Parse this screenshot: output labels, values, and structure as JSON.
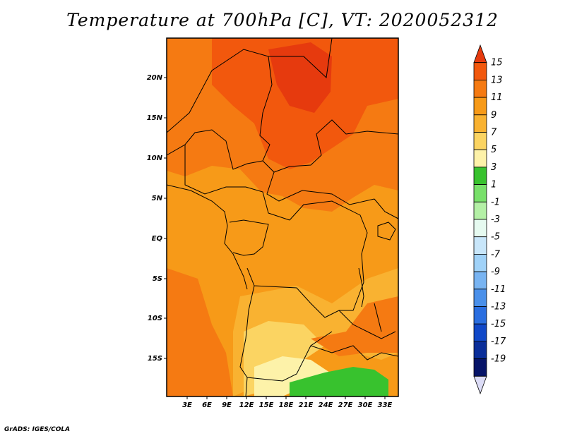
{
  "title": "Temperature at 700hPa [C], VT: 2020052312",
  "credit": "GrADS: IGES/COLA",
  "map": {
    "lat_labels": [
      "20N",
      "15N",
      "10N",
      "5N",
      "EQ",
      "5S",
      "10S",
      "15S"
    ],
    "lon_labels": [
      "3E",
      "6E",
      "9E",
      "12E",
      "15E",
      "18E",
      "21E",
      "24E",
      "27E",
      "30E",
      "33E"
    ],
    "lon_range": [
      0,
      35
    ],
    "lat_range": [
      -20,
      24
    ]
  },
  "colorbar": {
    "levels": [
      "15",
      "13",
      "11",
      "9",
      "7",
      "5",
      "3",
      "1",
      "-1",
      "-3",
      "-5",
      "-7",
      "-9",
      "-11",
      "-13",
      "-15",
      "-17",
      "-19"
    ],
    "colors": [
      "#e63a0e",
      "#f2580d",
      "#f57a12",
      "#f79a18",
      "#f9b231",
      "#fbd462",
      "#fdf2a9",
      "#38c22e",
      "#78e06a",
      "#b4f0a6",
      "#e6faf0",
      "#c8e6fa",
      "#a0d2f8",
      "#78b4f2",
      "#4a90ea",
      "#2a6ee0",
      "#1048c8",
      "#0a2e9a",
      "#061468",
      "#dcdcf6"
    ]
  }
}
